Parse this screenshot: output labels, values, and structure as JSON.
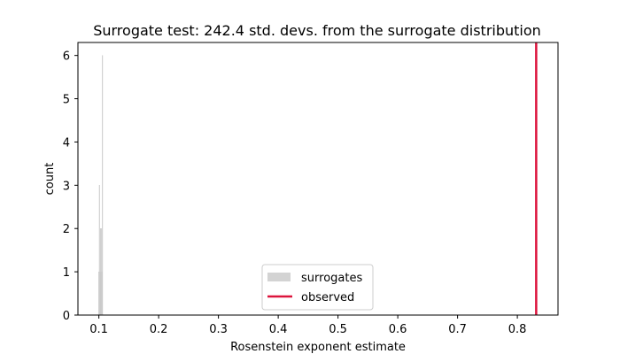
{
  "chart_data": {
    "type": "bar",
    "title": "Surrogate test: 242.4 std. devs. from the surrogate distribution",
    "xlabel": "Rosenstein exponent estimate",
    "ylabel": "count",
    "xlim": [
      0.065,
      0.868
    ],
    "ylim": [
      0,
      6.3
    ],
    "xticks": [
      {
        "value": 0.1,
        "label": "0.1"
      },
      {
        "value": 0.2,
        "label": "0.2"
      },
      {
        "value": 0.3,
        "label": "0.3"
      },
      {
        "value": 0.4,
        "label": "0.4"
      },
      {
        "value": 0.5,
        "label": "0.5"
      },
      {
        "value": 0.6,
        "label": "0.6"
      },
      {
        "value": 0.7,
        "label": "0.7"
      },
      {
        "value": 0.8,
        "label": "0.8"
      }
    ],
    "yticks": [
      {
        "value": 0,
        "label": "0"
      },
      {
        "value": 1,
        "label": "1"
      },
      {
        "value": 2,
        "label": "2"
      },
      {
        "value": 3,
        "label": "3"
      },
      {
        "value": 4,
        "label": "4"
      },
      {
        "value": 5,
        "label": "5"
      },
      {
        "value": 6,
        "label": "6"
      }
    ],
    "histogram": {
      "name": "surrogates",
      "color": "#d3d3d3",
      "bins": [
        {
          "x0": 0.0995,
          "x1": 0.1005,
          "count": 1
        },
        {
          "x0": 0.1005,
          "x1": 0.1015,
          "count": 3
        },
        {
          "x0": 0.1015,
          "x1": 0.1025,
          "count": 1
        },
        {
          "x0": 0.1025,
          "x1": 0.1035,
          "count": 2
        },
        {
          "x0": 0.1035,
          "x1": 0.1045,
          "count": 2
        },
        {
          "x0": 0.1045,
          "x1": 0.1055,
          "count": 1
        },
        {
          "x0": 0.1055,
          "x1": 0.1065,
          "count": 6
        }
      ]
    },
    "observed": {
      "name": "observed",
      "value": 0.8315,
      "color": "#dc143c"
    },
    "legend": {
      "placement": "lower center",
      "entries": [
        "surrogates",
        "observed"
      ]
    },
    "grid": false
  }
}
